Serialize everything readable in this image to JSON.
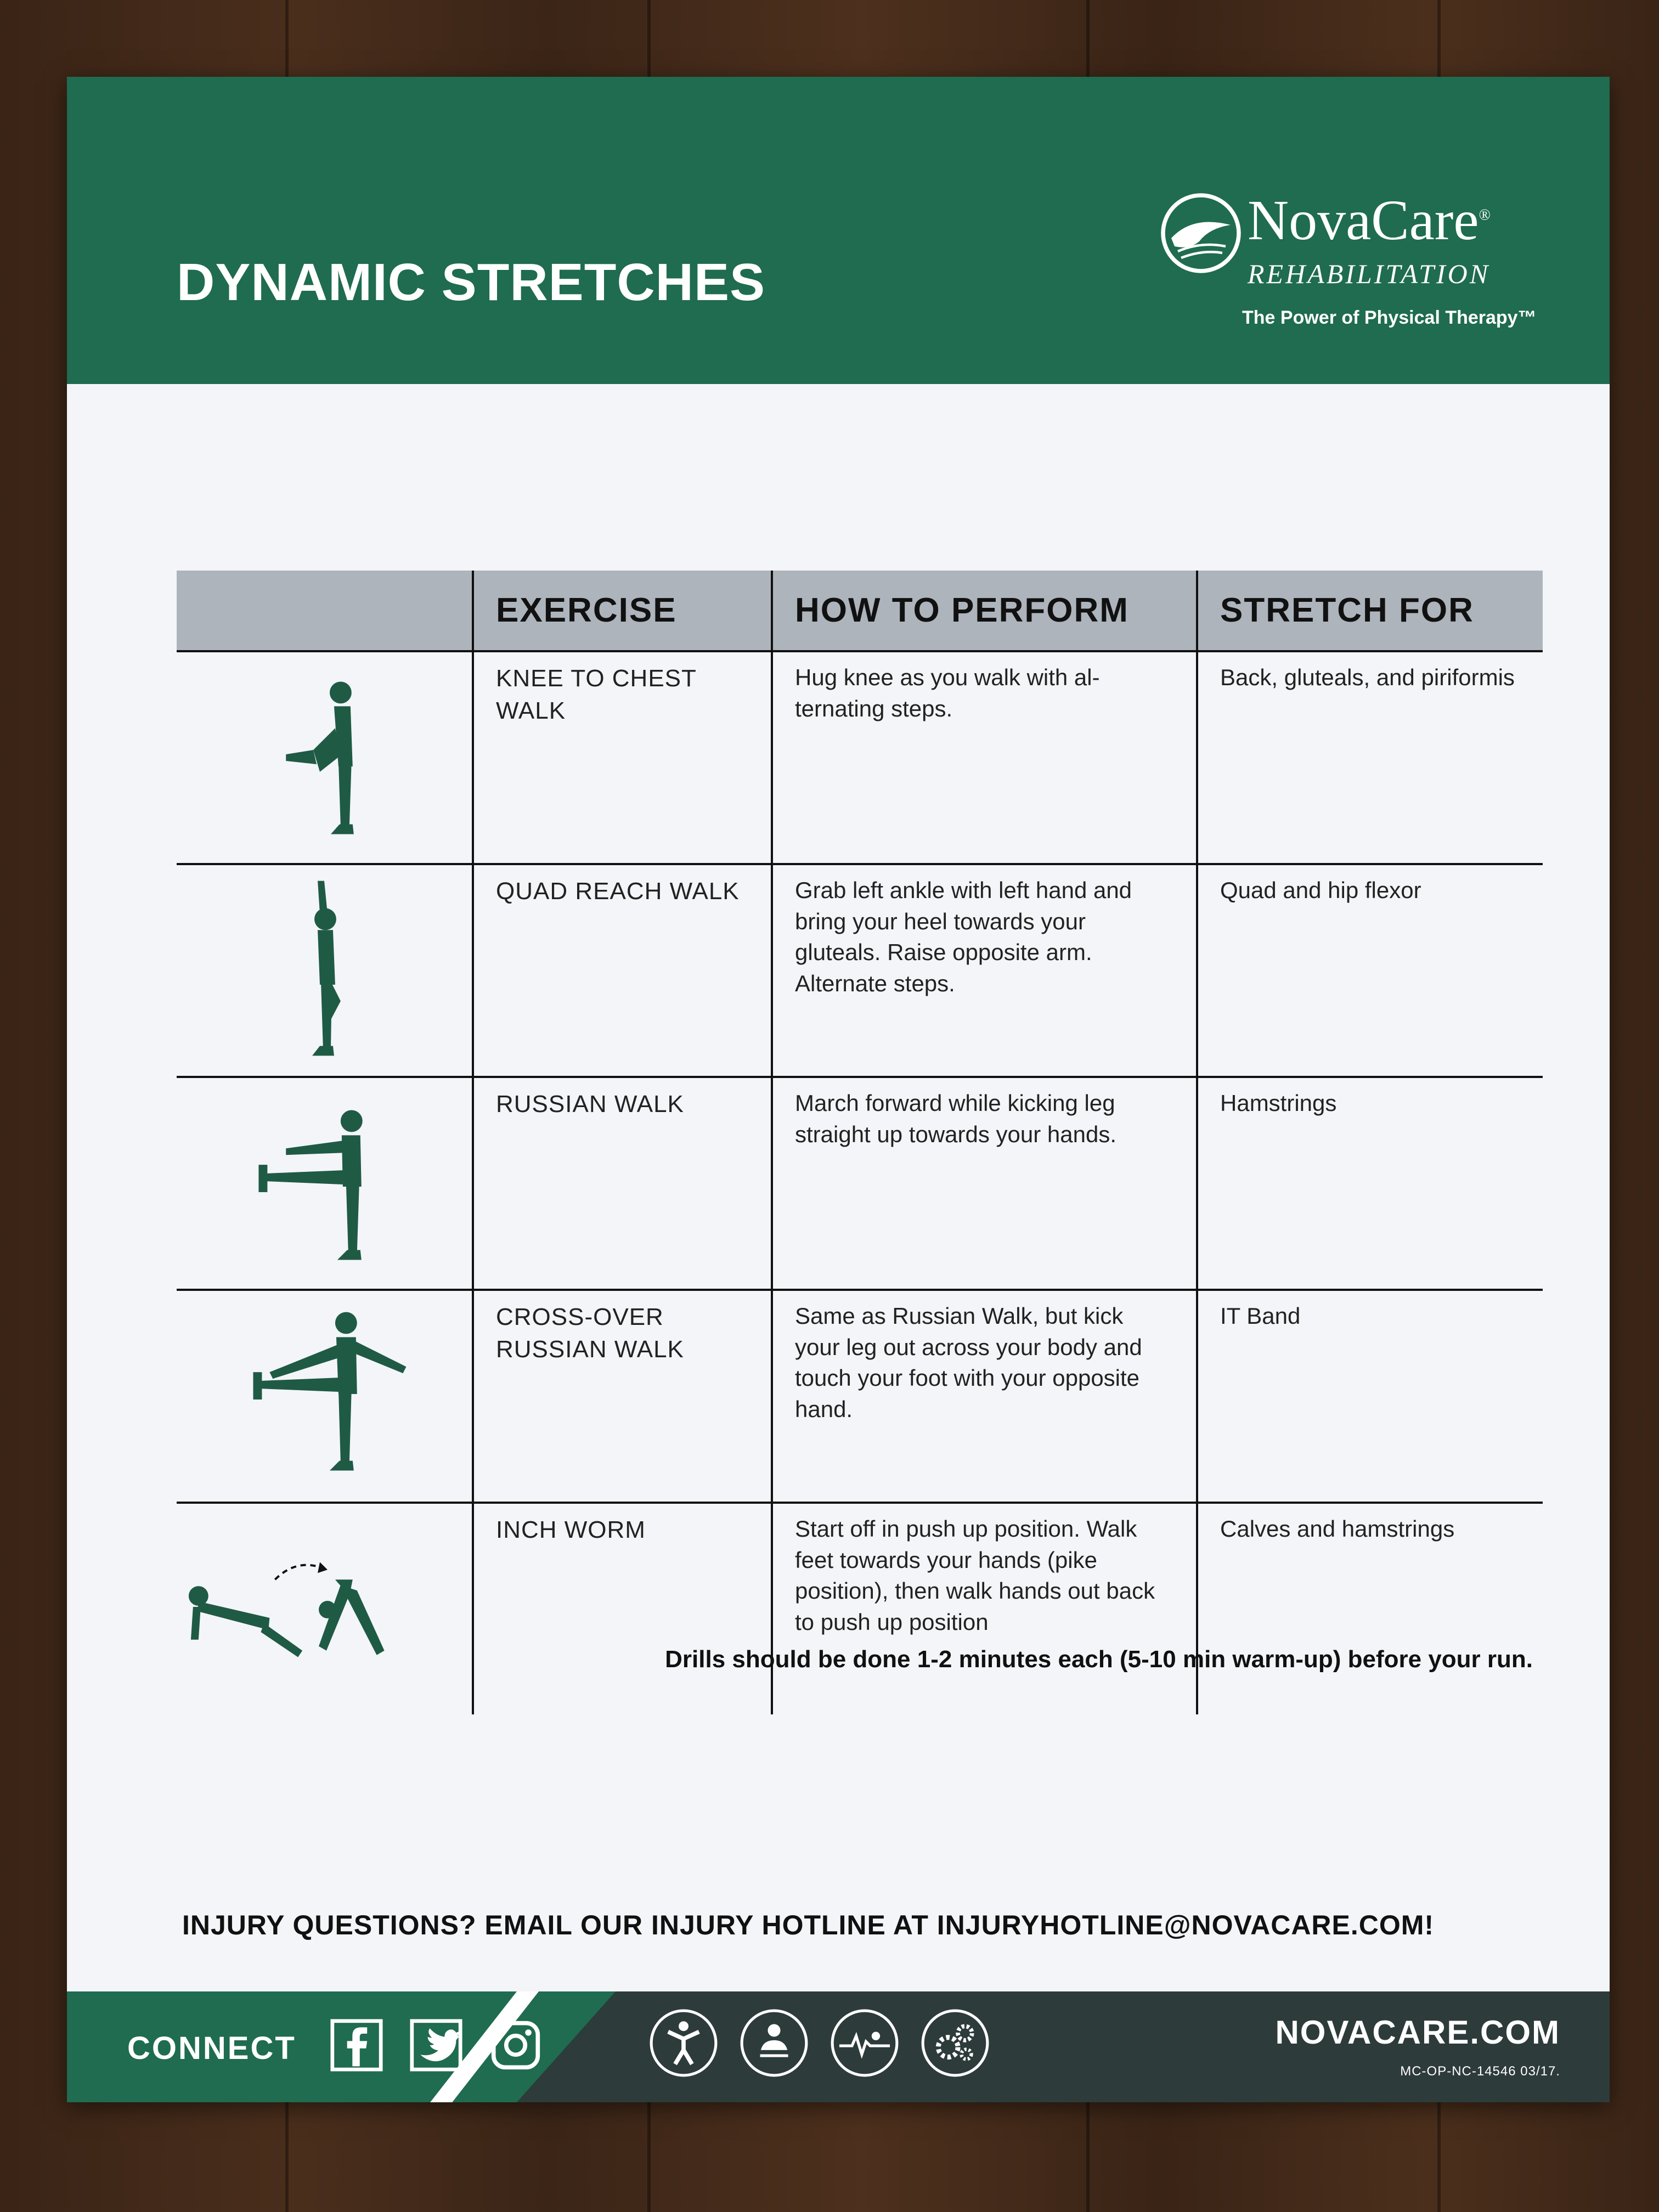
{
  "header": {
    "title": "DYNAMIC STRETCHES",
    "brand_name": "NovaCare",
    "brand_mark": "®",
    "brand_sub": "REHABILITATION",
    "brand_tagline": "The Power of Physical Therapy™"
  },
  "table": {
    "columns": [
      "",
      "EXERCISE",
      "HOW TO PERFORM",
      "STRETCH FOR"
    ],
    "rows": [
      {
        "icon": "knee-to-chest-figure-icon",
        "exercise": "KNEE TO CHEST WALK",
        "how": "Hug knee as you walk with al-ternating steps.",
        "stretch": "Back, gluteals, and piriformis"
      },
      {
        "icon": "quad-reach-figure-icon",
        "exercise": "QUAD REACH WALK",
        "how": "Grab left ankle with left hand and bring your heel towards your gluteals. Raise opposite arm. Alternate steps.",
        "stretch": "Quad and hip flexor"
      },
      {
        "icon": "russian-walk-figure-icon",
        "exercise": "RUSSIAN WALK",
        "how": "March forward while kicking leg straight up towards your hands.",
        "stretch": "Hamstrings"
      },
      {
        "icon": "cross-over-figure-icon",
        "exercise": "CROSS-OVER RUSSIAN WALK",
        "how": "Same as Russian Walk, but kick your leg out across your body and touch your foot with your opposite hand.",
        "stretch": "IT Band"
      },
      {
        "icon": "inch-worm-figure-icon",
        "exercise": "INCH WORM",
        "how": "Start off in push up position. Walk feet towards your hands (pike position), then walk hands out back to push up position",
        "stretch": "Calves and hamstrings"
      }
    ]
  },
  "note": "Drills should be done 1-2 minutes each (5-10 min warm-up) before your run.",
  "hotline": "INJURY QUESTIONS? EMAIL OUR INJURY HOTLINE AT INJURYHOTLINE@NOVACARE.COM!",
  "footer": {
    "connect": "CONNECT",
    "social_icons": [
      "facebook-icon",
      "twitter-icon",
      "instagram-icon"
    ],
    "service_icons": [
      "fitness-person-icon",
      "occupational-icon",
      "heart-rate-icon",
      "gears-icon"
    ],
    "site": "NOVACARE.COM",
    "code": "MC-OP-NC-14546 03/17."
  },
  "colors": {
    "brand_green": "#1f6c50",
    "header_gray": "#aeb4bc",
    "footer_dark": "#2d3b3a"
  }
}
